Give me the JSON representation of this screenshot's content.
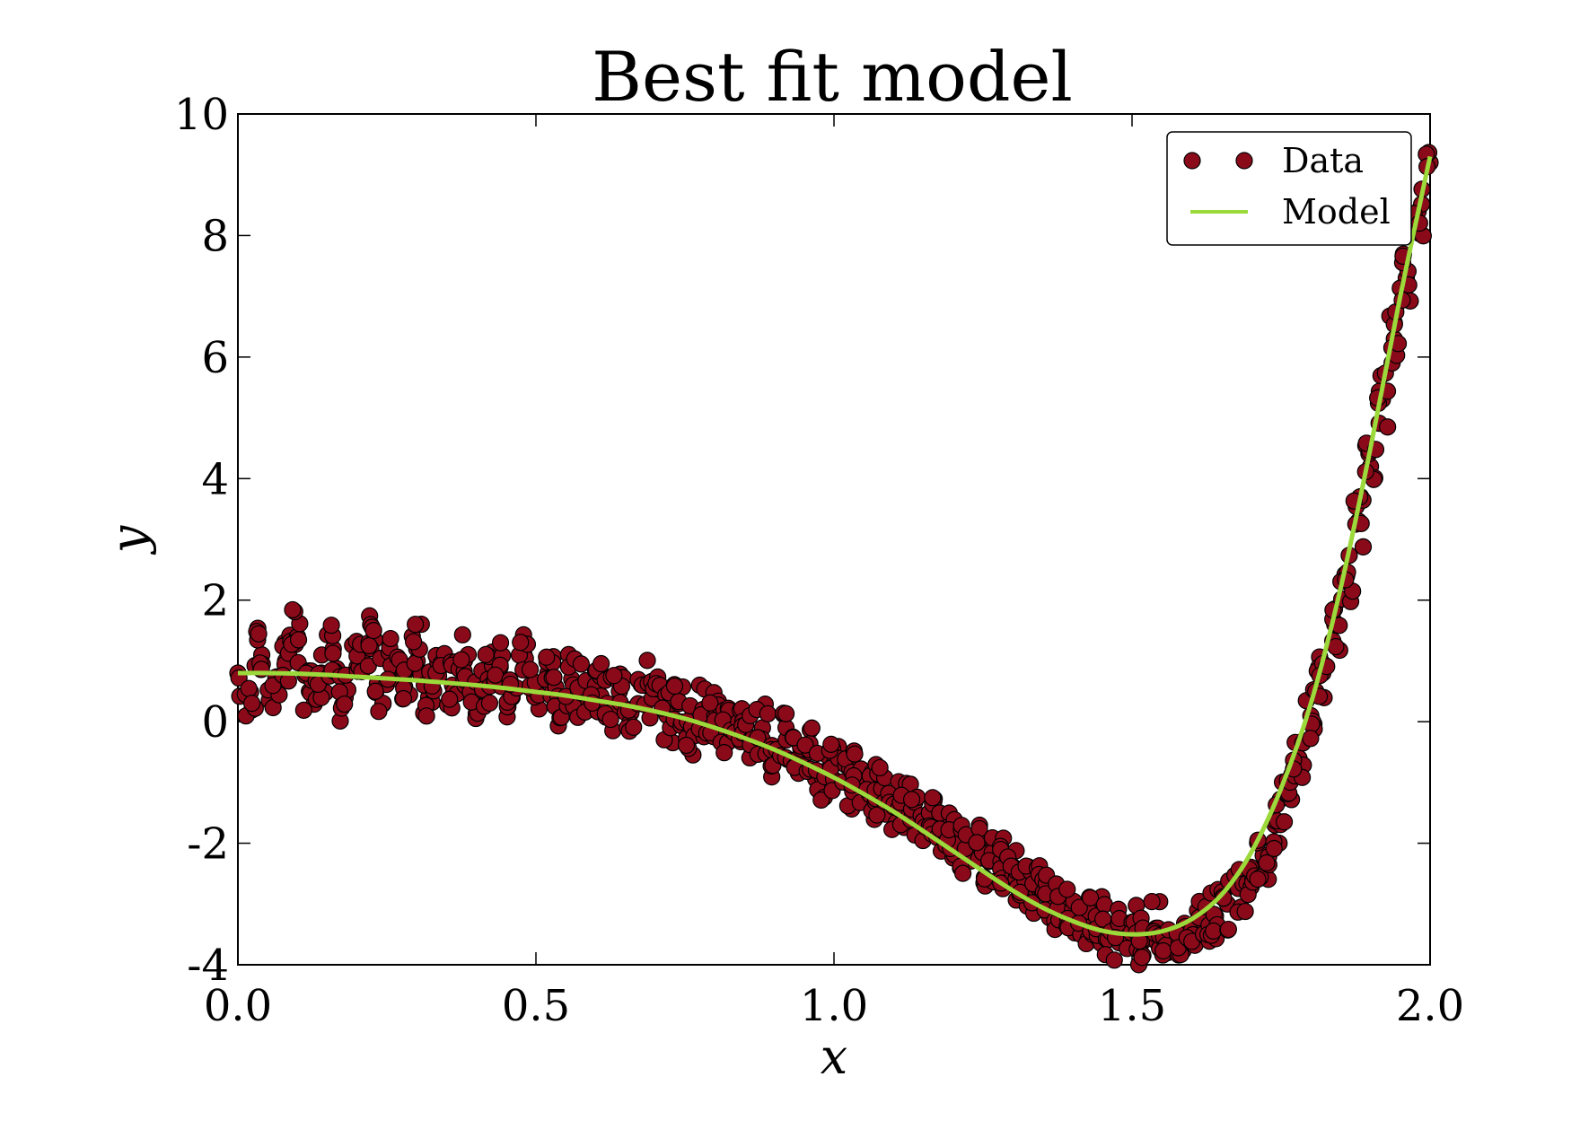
{
  "chart_data": {
    "type": "scatter",
    "title": "Best fit model",
    "xlabel": "x",
    "ylabel": "y",
    "xlim": [
      0.0,
      2.0
    ],
    "ylim": [
      -4,
      10
    ],
    "xticks": [
      "0.0",
      "0.5",
      "1.0",
      "1.5",
      "2.0"
    ],
    "yticks": [
      "-4",
      "-2",
      "0",
      "2",
      "4",
      "6",
      "8",
      "10"
    ],
    "grid": false,
    "legend_position": "top-right",
    "series": [
      {
        "name": "Data",
        "kind": "scatter",
        "color": "#8b0a1a",
        "edge_color": "#000000",
        "x": [
          0.0,
          0.02,
          0.04,
          0.06,
          0.08,
          0.1,
          0.12,
          0.14,
          0.16,
          0.18,
          0.2,
          0.22,
          0.24,
          0.26,
          0.28,
          0.3,
          0.32,
          0.34,
          0.36,
          0.38,
          0.4,
          0.42,
          0.44,
          0.46,
          0.48,
          0.5,
          0.52,
          0.54,
          0.56,
          0.58,
          0.6,
          0.62,
          0.64,
          0.66,
          0.68,
          0.7,
          0.72,
          0.74,
          0.76,
          0.78,
          0.8,
          0.82,
          0.84,
          0.86,
          0.88,
          0.9,
          0.92,
          0.94,
          0.96,
          0.98,
          1.0,
          1.02,
          1.04,
          1.06,
          1.08,
          1.1,
          1.12,
          1.14,
          1.16,
          1.18,
          1.2,
          1.22,
          1.24,
          1.26,
          1.28,
          1.3,
          1.32,
          1.34,
          1.36,
          1.38,
          1.4,
          1.42,
          1.44,
          1.46,
          1.48,
          1.5,
          1.52,
          1.54,
          1.56,
          1.58,
          1.6,
          1.62,
          1.64,
          1.66,
          1.68,
          1.7,
          1.72,
          1.74,
          1.76,
          1.78,
          1.8,
          1.82,
          1.84,
          1.86,
          1.88,
          1.9,
          1.92,
          1.94,
          1.96,
          1.98,
          2.0
        ],
        "y": [
          0.8,
          0.5,
          1.1,
          0.6,
          1.0,
          1.4,
          0.5,
          0.8,
          1.2,
          0.4,
          0.9,
          1.3,
          0.6,
          1.0,
          0.8,
          1.2,
          0.4,
          0.9,
          0.6,
          1.0,
          0.5,
          0.7,
          0.9,
          0.4,
          1.1,
          0.6,
          0.8,
          0.3,
          0.7,
          0.5,
          0.6,
          0.3,
          0.5,
          0.2,
          0.6,
          0.4,
          0.1,
          0.3,
          -0.1,
          0.2,
          0.1,
          -0.2,
          0.0,
          -0.3,
          -0.1,
          -0.5,
          -0.3,
          -0.6,
          -0.5,
          -0.9,
          -0.7,
          -1.0,
          -0.9,
          -1.2,
          -1.1,
          -1.4,
          -1.3,
          -1.6,
          -1.5,
          -1.8,
          -1.8,
          -2.1,
          -2.0,
          -2.3,
          -2.3,
          -2.5,
          -2.6,
          -2.8,
          -2.9,
          -3.0,
          -3.1,
          -3.3,
          -3.2,
          -3.4,
          -3.5,
          -3.3,
          -3.6,
          -3.4,
          -3.7,
          -3.5,
          -3.5,
          -3.3,
          -3.2,
          -3.0,
          -2.7,
          -2.4,
          -2.2,
          -1.7,
          -1.2,
          -0.6,
          0.1,
          0.8,
          1.6,
          2.4,
          3.3,
          4.2,
          5.3,
          6.3,
          7.3,
          8.4,
          9.2
        ],
        "marker": "circle"
      },
      {
        "name": "Model",
        "kind": "line",
        "color": "#9cd93b",
        "x": [
          0.0,
          0.05,
          0.1,
          0.15,
          0.2,
          0.25,
          0.3,
          0.35,
          0.4,
          0.45,
          0.5,
          0.55,
          0.6,
          0.65,
          0.7,
          0.75,
          0.8,
          0.85,
          0.9,
          0.95,
          1.0,
          1.05,
          1.1,
          1.15,
          1.2,
          1.25,
          1.3,
          1.35,
          1.4,
          1.45,
          1.5,
          1.55,
          1.6,
          1.65,
          1.7,
          1.75,
          1.8,
          1.85,
          1.9,
          1.95,
          2.0
        ],
        "y": [
          0.8,
          0.8,
          0.79,
          0.77,
          0.74,
          0.71,
          0.68,
          0.64,
          0.6,
          0.55,
          0.49,
          0.43,
          0.35,
          0.27,
          0.17,
          0.05,
          -0.1,
          -0.27,
          -0.46,
          -0.68,
          -0.92,
          -1.19,
          -1.48,
          -1.8,
          -2.13,
          -2.46,
          -2.78,
          -3.06,
          -3.28,
          -3.44,
          -3.5,
          -3.45,
          -3.25,
          -2.85,
          -2.15,
          -1.1,
          0.3,
          2.2,
          4.5,
          7.0,
          9.3
        ]
      }
    ]
  }
}
